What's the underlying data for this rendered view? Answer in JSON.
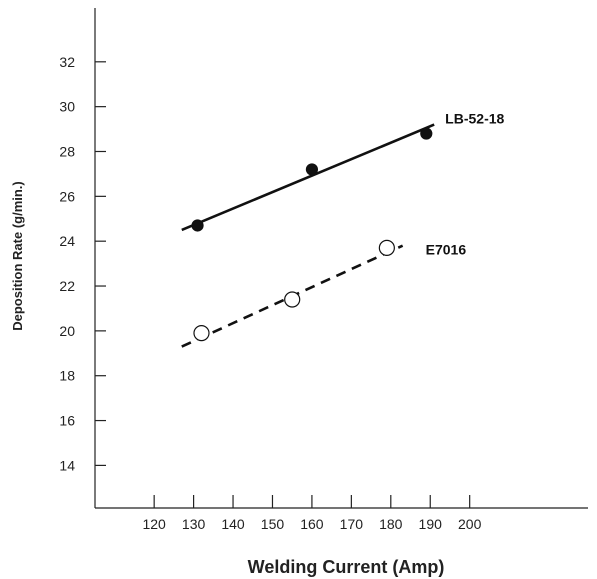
{
  "chart_data": {
    "type": "scatter",
    "title": "",
    "xlabel": "Welding Current (Amp)",
    "ylabel": "Deposition Rate (g/min.)",
    "xlim": [
      105,
      230
    ],
    "ylim": [
      12.1,
      34.4
    ],
    "x_ticks": [
      120,
      130,
      140,
      150,
      160,
      170,
      180,
      190,
      200
    ],
    "y_ticks": [
      14,
      16,
      18,
      20,
      22,
      24,
      26,
      28,
      30,
      32
    ],
    "grid": false,
    "series": [
      {
        "name": "LB-52-18",
        "marker": "filled-circle",
        "line_style": "solid",
        "color": "#111111",
        "points": [
          {
            "x": 131,
            "y": 24.7
          },
          {
            "x": 160,
            "y": 27.2
          },
          {
            "x": 189,
            "y": 28.8
          }
        ],
        "fit_line": [
          {
            "x": 127,
            "y": 24.5
          },
          {
            "x": 191,
            "y": 29.2
          }
        ]
      },
      {
        "name": "E7016",
        "marker": "open-circle",
        "line_style": "dashed",
        "color": "#111111",
        "points": [
          {
            "x": 132,
            "y": 19.9
          },
          {
            "x": 155,
            "y": 21.4
          },
          {
            "x": 179,
            "y": 23.7
          }
        ],
        "fit_line": [
          {
            "x": 127,
            "y": 19.3
          },
          {
            "x": 183,
            "y": 23.8
          }
        ]
      }
    ]
  }
}
